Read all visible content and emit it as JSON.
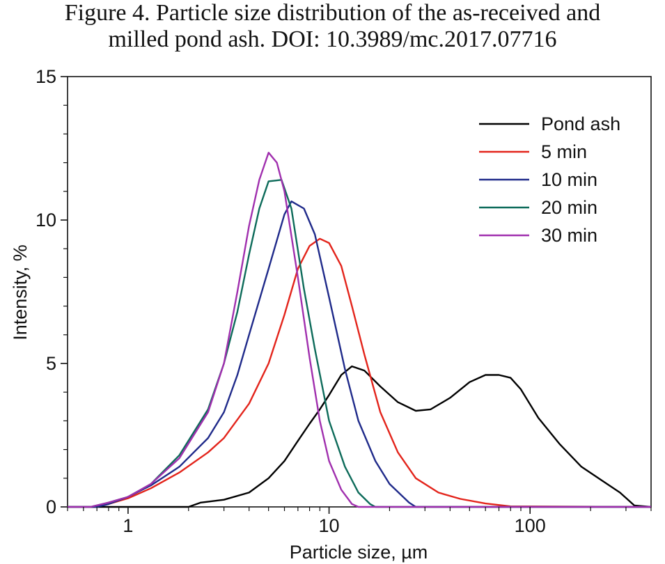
{
  "title": {
    "line1": "Figure 4. Particle size distribution of the as-received and",
    "line2": "milled pond ash. DOI: 10.3989/mc.2017.07716"
  },
  "chart_data": {
    "type": "line",
    "xscale": "log",
    "xlim": [
      0.5,
      400
    ],
    "ylim": [
      0,
      15
    ],
    "xlabel": "Particle size, µm",
    "ylabel": "Intensity, %",
    "xticks": [
      1,
      10,
      100
    ],
    "xtick_labels": [
      "1",
      "10",
      "100"
    ],
    "yticks": [
      0,
      5,
      10,
      15
    ],
    "ytick_labels": [
      "0",
      "5",
      "10",
      "15"
    ],
    "grid": false,
    "legend_position": "top-right",
    "series": [
      {
        "name": "Pond ash",
        "color": "#000000",
        "points": [
          [
            0.5,
            0
          ],
          [
            2.0,
            0
          ],
          [
            2.3,
            0.15
          ],
          [
            3.0,
            0.25
          ],
          [
            4.0,
            0.5
          ],
          [
            5.0,
            1.0
          ],
          [
            6.0,
            1.6
          ],
          [
            7.0,
            2.3
          ],
          [
            8.0,
            2.9
          ],
          [
            9.0,
            3.4
          ],
          [
            10.0,
            3.9
          ],
          [
            11.5,
            4.6
          ],
          [
            13.0,
            4.9
          ],
          [
            15.0,
            4.75
          ],
          [
            18.0,
            4.2
          ],
          [
            22.0,
            3.65
          ],
          [
            27.0,
            3.35
          ],
          [
            32.0,
            3.4
          ],
          [
            40.0,
            3.8
          ],
          [
            50.0,
            4.35
          ],
          [
            60.0,
            4.6
          ],
          [
            70.0,
            4.6
          ],
          [
            80.0,
            4.5
          ],
          [
            90.0,
            4.1
          ],
          [
            110.0,
            3.1
          ],
          [
            140.0,
            2.2
          ],
          [
            180.0,
            1.4
          ],
          [
            230.0,
            0.9
          ],
          [
            280.0,
            0.5
          ],
          [
            330.0,
            0.05
          ],
          [
            400.0,
            0
          ]
        ]
      },
      {
        "name": "5 min",
        "color": "#e3241b",
        "points": [
          [
            0.5,
            0
          ],
          [
            0.68,
            0
          ],
          [
            0.8,
            0.1
          ],
          [
            1.0,
            0.3
          ],
          [
            1.3,
            0.65
          ],
          [
            1.8,
            1.2
          ],
          [
            2.5,
            1.9
          ],
          [
            3.0,
            2.4
          ],
          [
            4.0,
            3.6
          ],
          [
            5.0,
            5.0
          ],
          [
            6.0,
            6.7
          ],
          [
            7.0,
            8.3
          ],
          [
            8.0,
            9.1
          ],
          [
            9.0,
            9.35
          ],
          [
            10.0,
            9.2
          ],
          [
            11.5,
            8.4
          ],
          [
            13.0,
            7.0
          ],
          [
            15.0,
            5.3
          ],
          [
            18.0,
            3.3
          ],
          [
            22.0,
            1.9
          ],
          [
            27.0,
            1.0
          ],
          [
            35.0,
            0.5
          ],
          [
            45.0,
            0.28
          ],
          [
            60.0,
            0.12
          ],
          [
            80.0,
            0.02
          ],
          [
            400.0,
            0
          ]
        ]
      },
      {
        "name": "10 min",
        "color": "#1f2a8a",
        "points": [
          [
            0.5,
            0
          ],
          [
            0.7,
            0
          ],
          [
            0.8,
            0.1
          ],
          [
            1.0,
            0.35
          ],
          [
            1.3,
            0.75
          ],
          [
            1.8,
            1.4
          ],
          [
            2.5,
            2.4
          ],
          [
            3.0,
            3.3
          ],
          [
            3.5,
            4.6
          ],
          [
            4.0,
            6.0
          ],
          [
            5.0,
            8.3
          ],
          [
            6.0,
            10.2
          ],
          [
            6.5,
            10.65
          ],
          [
            7.5,
            10.4
          ],
          [
            8.5,
            9.5
          ],
          [
            10.0,
            7.3
          ],
          [
            12.0,
            4.8
          ],
          [
            14.0,
            3.0
          ],
          [
            17.0,
            1.6
          ],
          [
            20.0,
            0.8
          ],
          [
            25.0,
            0.15
          ],
          [
            27.0,
            0
          ],
          [
            400.0,
            0
          ]
        ]
      },
      {
        "name": "20 min",
        "color": "#0d6b5a",
        "points": [
          [
            0.5,
            0
          ],
          [
            0.65,
            0
          ],
          [
            0.8,
            0.15
          ],
          [
            1.0,
            0.35
          ],
          [
            1.3,
            0.8
          ],
          [
            1.8,
            1.8
          ],
          [
            2.5,
            3.4
          ],
          [
            3.0,
            5.0
          ],
          [
            3.5,
            6.8
          ],
          [
            4.0,
            8.8
          ],
          [
            4.5,
            10.4
          ],
          [
            5.0,
            11.35
          ],
          [
            5.8,
            11.4
          ],
          [
            6.5,
            10.4
          ],
          [
            7.5,
            7.6
          ],
          [
            8.5,
            5.5
          ],
          [
            10.0,
            3.0
          ],
          [
            12.0,
            1.4
          ],
          [
            14.0,
            0.5
          ],
          [
            16.0,
            0.1
          ],
          [
            17.0,
            0
          ],
          [
            400.0,
            0
          ]
        ]
      },
      {
        "name": "30 min",
        "color": "#a02fae",
        "points": [
          [
            0.5,
            0
          ],
          [
            0.65,
            0
          ],
          [
            0.8,
            0.15
          ],
          [
            1.0,
            0.35
          ],
          [
            1.3,
            0.8
          ],
          [
            1.8,
            1.7
          ],
          [
            2.5,
            3.3
          ],
          [
            3.0,
            5.0
          ],
          [
            3.5,
            7.5
          ],
          [
            4.0,
            9.8
          ],
          [
            4.5,
            11.4
          ],
          [
            5.0,
            12.35
          ],
          [
            5.5,
            12.0
          ],
          [
            6.0,
            11.0
          ],
          [
            7.0,
            8.0
          ],
          [
            8.0,
            5.2
          ],
          [
            9.0,
            3.0
          ],
          [
            10.0,
            1.6
          ],
          [
            11.5,
            0.6
          ],
          [
            13.0,
            0.1
          ],
          [
            14.0,
            0
          ],
          [
            400.0,
            0
          ]
        ]
      }
    ]
  }
}
